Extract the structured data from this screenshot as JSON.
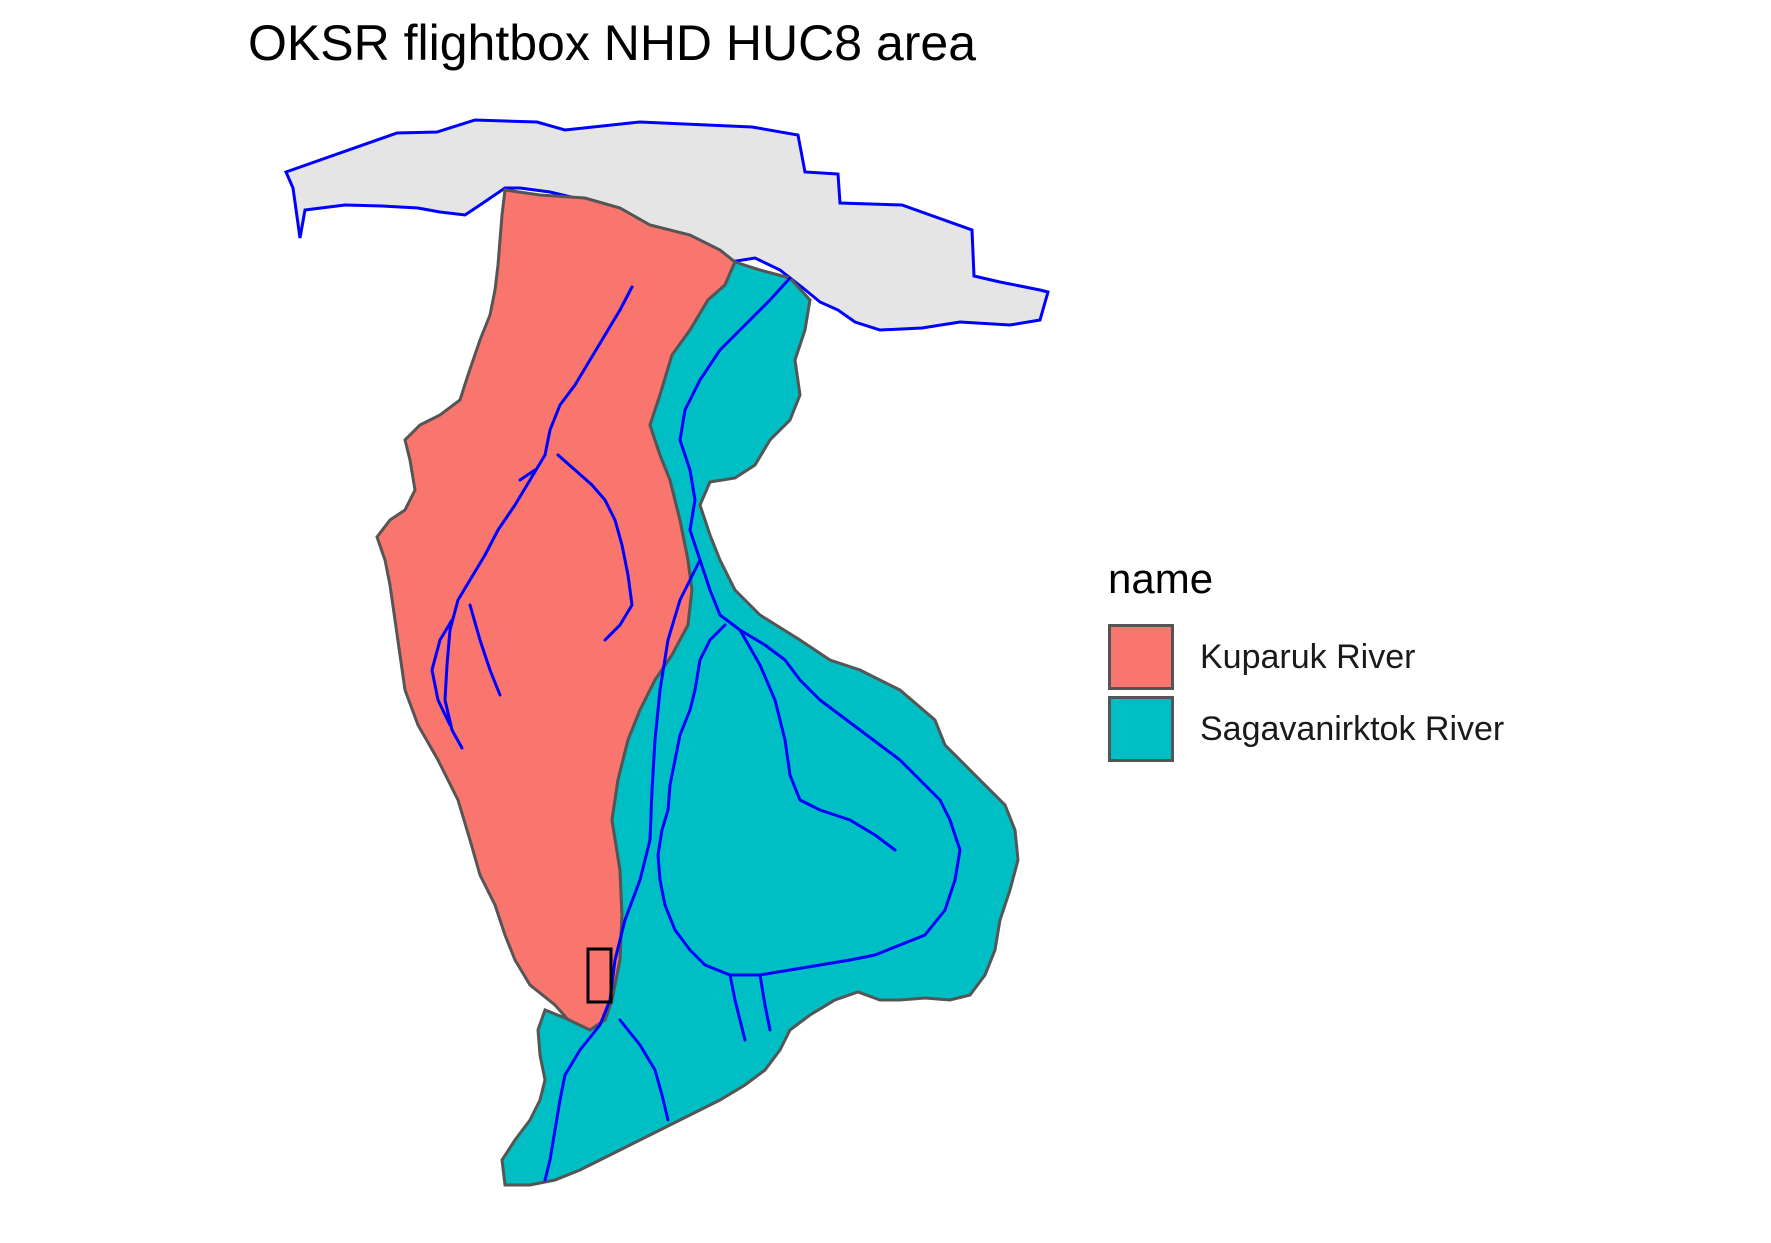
{
  "map": {
    "title": "OKSR flightbox NHD HUC8 area"
  },
  "colors": {
    "kuparuk": "#F8766D",
    "sagavanirktok": "#00BFC4",
    "other": "#E5E5E5",
    "flowlines": "#0000FF",
    "huc_border": "#555555",
    "flightbox_border": "#000000"
  },
  "legend": {
    "title": "name",
    "items": [
      {
        "label": "Kuparuk River",
        "color": "#F8766D"
      },
      {
        "label": "Sagavanirktok River",
        "color": "#00BFC4"
      }
    ]
  }
}
